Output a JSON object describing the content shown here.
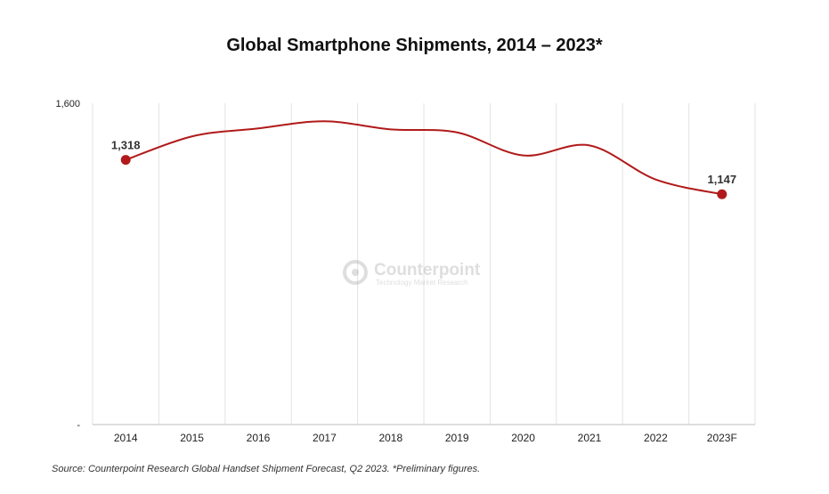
{
  "chart_data": {
    "type": "line",
    "title": "Global Smartphone Shipments, 2014 – 2023*",
    "categories": [
      "2014",
      "2015",
      "2016",
      "2017",
      "2018",
      "2019",
      "2020",
      "2021",
      "2022",
      "2023F"
    ],
    "series": [
      {
        "name": "Global Smartphone Shipments",
        "values": [
          1318,
          1435,
          1475,
          1510,
          1470,
          1455,
          1340,
          1390,
          1220,
          1147
        ],
        "color": "#b11a1a"
      }
    ],
    "labeled_points": [
      {
        "index": 0,
        "label": "1,318"
      },
      {
        "index": 9,
        "label": "1,147"
      }
    ],
    "y_ticks": [
      {
        "value": 0,
        "label": "-"
      },
      {
        "value": 1600,
        "label": "1,600"
      }
    ],
    "ylim": [
      0,
      1600
    ],
    "xlabel": "",
    "ylabel": "",
    "grid": "vertical",
    "source": "Source:  Counterpoint Research Global Handset Shipment Forecast, Q2 2023. *Preliminary figures."
  },
  "watermark": {
    "brand": "Counterpoint",
    "tagline": "Technology Market Research"
  },
  "colors": {
    "line": "#b11a1a",
    "grid": "#e3e3e3",
    "axis": "#bdbdbd",
    "text": "#222222"
  }
}
